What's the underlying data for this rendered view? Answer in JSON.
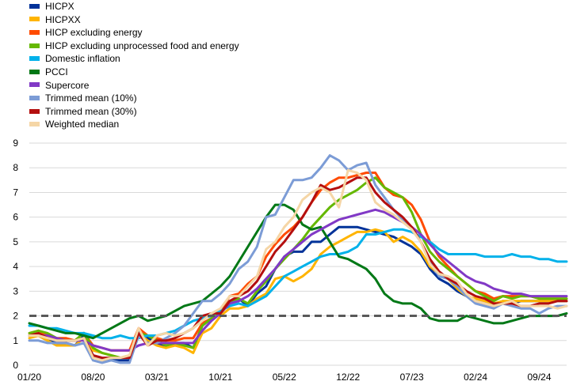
{
  "chart_data": {
    "type": "line",
    "x": [
      "01/20",
      "02/20",
      "03/20",
      "04/20",
      "05/20",
      "06/20",
      "07/20",
      "08/20",
      "09/20",
      "10/20",
      "11/20",
      "12/20",
      "01/21",
      "02/21",
      "03/21",
      "04/21",
      "05/21",
      "06/21",
      "07/21",
      "08/21",
      "09/21",
      "10/21",
      "11/21",
      "12/21",
      "01/22",
      "02/22",
      "03/22",
      "04/22",
      "05/22",
      "06/22",
      "07/22",
      "08/22",
      "09/22",
      "10/22",
      "11/22",
      "12/22",
      "01/23",
      "02/23",
      "03/23",
      "04/23",
      "05/23",
      "06/23",
      "07/23",
      "08/23",
      "09/23",
      "10/23",
      "11/23",
      "12/23",
      "01/24",
      "02/24",
      "03/24",
      "04/24",
      "05/24",
      "06/24",
      "07/24",
      "08/24",
      "09/24",
      "10/24",
      "11/24",
      "12/24"
    ],
    "xticks": [
      "01/20",
      "08/20",
      "03/21",
      "10/21",
      "05/22",
      "12/22",
      "07/23",
      "02/24",
      "09/24"
    ],
    "ylim": [
      0,
      9
    ],
    "yticks": [
      0,
      1,
      2,
      3,
      4,
      5,
      6,
      7,
      8,
      9
    ],
    "grid": true,
    "legend_position": "top-left",
    "reference_line": {
      "y": 2,
      "style": "dashed",
      "color": "#595959"
    },
    "series": [
      {
        "name": "HICPX",
        "color": "#003299",
        "values": [
          1.2,
          1.2,
          1.0,
          0.9,
          0.9,
          0.8,
          1.2,
          0.4,
          0.2,
          0.2,
          0.2,
          0.2,
          1.4,
          1.1,
          0.9,
          0.7,
          0.9,
          0.9,
          0.7,
          1.6,
          1.9,
          2.1,
          2.6,
          2.7,
          2.4,
          2.9,
          3.2,
          3.9,
          4.4,
          4.6,
          4.6,
          5.0,
          5.0,
          5.3,
          5.6,
          5.6,
          5.6,
          5.5,
          5.4,
          5.3,
          5.2,
          5.0,
          4.8,
          4.5,
          3.9,
          3.5,
          3.3,
          3.0,
          2.8,
          2.6,
          2.5,
          2.4,
          2.6,
          2.5,
          2.6,
          2.6,
          2.6,
          2.6,
          2.6,
          2.6
        ]
      },
      {
        "name": "HICPXX",
        "color": "#FFB400",
        "values": [
          1.1,
          1.2,
          1.0,
          0.8,
          0.8,
          0.8,
          1.1,
          0.6,
          0.5,
          0.4,
          0.3,
          0.4,
          1.3,
          1.0,
          0.8,
          0.7,
          0.8,
          0.7,
          0.5,
          1.3,
          1.5,
          2.0,
          2.3,
          2.3,
          2.4,
          2.7,
          2.9,
          3.5,
          3.6,
          3.4,
          3.6,
          3.9,
          4.5,
          4.8,
          5.0,
          5.2,
          5.4,
          5.4,
          5.5,
          5.4,
          5.0,
          5.2,
          5.0,
          4.6,
          4.0,
          3.7,
          3.5,
          3.1,
          2.8,
          2.7,
          2.6,
          2.5,
          2.6,
          2.6,
          2.6,
          2.6,
          2.6,
          2.6,
          2.6,
          2.6
        ]
      },
      {
        "name": "HICP excluding energy",
        "color": "#FF4B00",
        "values": [
          1.3,
          1.4,
          1.2,
          1.1,
          1.1,
          1.0,
          1.3,
          0.8,
          0.7,
          0.6,
          0.6,
          0.6,
          1.5,
          1.2,
          1.1,
          1.0,
          1.0,
          1.1,
          1.1,
          1.7,
          1.9,
          2.2,
          2.8,
          2.9,
          3.3,
          3.6,
          4.4,
          4.9,
          5.3,
          5.6,
          6.0,
          6.6,
          7.1,
          7.4,
          7.6,
          7.6,
          7.7,
          7.8,
          7.8,
          7.2,
          6.9,
          6.8,
          6.5,
          5.9,
          5.0,
          4.4,
          4.0,
          3.6,
          3.3,
          3.0,
          2.9,
          2.7,
          2.8,
          2.8,
          2.8,
          2.8,
          2.7,
          2.7,
          2.7,
          2.7
        ]
      },
      {
        "name": "HICP excluding unprocessed food and energy",
        "color": "#65B800",
        "values": [
          1.3,
          1.4,
          1.3,
          1.1,
          1.0,
          1.0,
          1.3,
          0.7,
          0.5,
          0.4,
          0.3,
          0.3,
          1.3,
          1.2,
          1.0,
          0.8,
          0.9,
          0.8,
          0.7,
          1.6,
          1.9,
          2.1,
          2.6,
          2.7,
          2.5,
          3.0,
          3.4,
          3.9,
          4.3,
          4.7,
          5.1,
          5.6,
          6.0,
          6.4,
          6.7,
          6.9,
          7.1,
          7.4,
          7.6,
          7.2,
          7.0,
          6.8,
          6.2,
          5.3,
          4.6,
          4.2,
          3.9,
          3.6,
          3.3,
          3.0,
          2.8,
          2.6,
          2.8,
          2.7,
          2.8,
          2.8,
          2.7,
          2.7,
          2.7,
          2.7
        ]
      },
      {
        "name": "Domestic inflation",
        "color": "#00B1EA",
        "values": [
          1.6,
          1.6,
          1.5,
          1.5,
          1.4,
          1.3,
          1.3,
          1.2,
          1.1,
          1.1,
          1.2,
          1.1,
          1.1,
          1.2,
          1.2,
          1.3,
          1.4,
          1.6,
          1.8,
          1.9,
          2.0,
          2.2,
          2.4,
          2.5,
          2.4,
          2.6,
          2.8,
          3.2,
          3.6,
          3.8,
          4.0,
          4.2,
          4.4,
          4.5,
          4.5,
          4.6,
          4.8,
          5.3,
          5.3,
          5.4,
          5.5,
          5.5,
          5.4,
          5.2,
          5.0,
          4.7,
          4.5,
          4.5,
          4.5,
          4.5,
          4.4,
          4.4,
          4.4,
          4.5,
          4.4,
          4.4,
          4.3,
          4.3,
          4.2,
          4.2
        ]
      },
      {
        "name": "PCCI",
        "color": "#007816",
        "values": [
          1.7,
          1.6,
          1.5,
          1.4,
          1.3,
          1.3,
          1.2,
          1.1,
          1.3,
          1.5,
          1.7,
          1.9,
          2.0,
          1.8,
          1.9,
          2.0,
          2.2,
          2.4,
          2.5,
          2.6,
          2.9,
          3.2,
          3.6,
          4.2,
          4.8,
          5.4,
          6.0,
          6.5,
          6.5,
          6.3,
          5.7,
          5.5,
          5.6,
          5.0,
          4.4,
          4.3,
          4.1,
          3.9,
          3.5,
          2.9,
          2.6,
          2.5,
          2.5,
          2.3,
          1.9,
          1.8,
          1.8,
          1.8,
          2.0,
          1.9,
          1.8,
          1.7,
          1.7,
          1.8,
          1.9,
          2.0,
          2.0,
          2.0,
          2.0,
          2.1
        ]
      },
      {
        "name": "Supercore",
        "color": "#8139C6",
        "values": [
          1.2,
          1.2,
          1.2,
          1.1,
          1.0,
          1.0,
          1.0,
          0.8,
          0.7,
          0.6,
          0.6,
          0.6,
          0.8,
          0.9,
          0.9,
          0.9,
          0.9,
          0.9,
          0.9,
          1.4,
          1.8,
          2.1,
          2.5,
          2.6,
          2.8,
          3.1,
          3.5,
          3.9,
          4.4,
          4.7,
          5.0,
          5.3,
          5.5,
          5.7,
          5.9,
          6.0,
          6.1,
          6.2,
          6.3,
          6.2,
          6.0,
          5.8,
          5.6,
          5.3,
          4.9,
          4.5,
          4.2,
          3.9,
          3.6,
          3.4,
          3.3,
          3.1,
          3.0,
          2.9,
          2.9,
          2.8,
          2.8,
          2.8,
          2.8,
          2.8
        ]
      },
      {
        "name": "Trimmed mean (10%)",
        "color": "#7C9CD6",
        "values": [
          1.0,
          1.0,
          0.9,
          0.9,
          0.9,
          0.8,
          0.9,
          0.2,
          0.1,
          0.2,
          0.1,
          0.1,
          1.2,
          0.9,
          0.9,
          1.1,
          1.3,
          1.6,
          2.1,
          2.6,
          2.6,
          2.9,
          3.3,
          3.9,
          4.2,
          4.8,
          6.0,
          6.1,
          6.8,
          7.5,
          7.5,
          7.6,
          8.0,
          8.5,
          8.3,
          7.9,
          8.1,
          8.2,
          7.3,
          6.8,
          6.3,
          5.9,
          5.5,
          5.0,
          4.2,
          3.6,
          3.5,
          3.2,
          2.8,
          2.5,
          2.4,
          2.3,
          2.5,
          2.4,
          2.3,
          2.3,
          2.1,
          2.3,
          2.4,
          2.4
        ]
      },
      {
        "name": "Trimmed mean (30%)",
        "color": "#B40F0F",
        "values": [
          1.2,
          1.3,
          1.1,
          1.0,
          1.0,
          1.0,
          1.1,
          0.4,
          0.3,
          0.3,
          0.3,
          0.3,
          1.3,
          0.8,
          1.0,
          1.0,
          1.1,
          1.3,
          1.5,
          2.0,
          2.1,
          2.1,
          2.6,
          2.8,
          3.0,
          3.4,
          4.0,
          4.6,
          5.0,
          5.5,
          6.0,
          6.6,
          7.3,
          7.1,
          7.2,
          7.4,
          7.6,
          7.6,
          7.0,
          6.6,
          6.3,
          6.0,
          5.6,
          5.0,
          4.3,
          3.8,
          3.5,
          3.3,
          3.0,
          2.8,
          2.7,
          2.5,
          2.5,
          2.5,
          2.4,
          2.4,
          2.5,
          2.5,
          2.6,
          2.6
        ]
      },
      {
        "name": "Weighted median",
        "color": "#F5D6A6",
        "values": [
          1.2,
          1.2,
          1.1,
          1.0,
          1.0,
          1.0,
          1.1,
          0.3,
          0.2,
          0.3,
          0.3,
          0.4,
          1.5,
          0.8,
          1.2,
          1.3,
          1.2,
          1.3,
          1.5,
          1.8,
          2.1,
          2.3,
          2.8,
          2.8,
          3.2,
          3.6,
          4.7,
          5.0,
          5.6,
          6.0,
          6.7,
          7.0,
          7.2,
          7.0,
          6.4,
          7.9,
          7.8,
          7.5,
          6.6,
          6.3,
          6.1,
          5.8,
          5.5,
          5.0,
          4.1,
          3.7,
          3.6,
          3.4,
          2.9,
          2.6,
          2.5,
          2.4,
          2.5,
          2.6,
          2.4,
          2.4,
          2.4,
          2.4,
          2.3,
          2.4
        ]
      }
    ]
  }
}
